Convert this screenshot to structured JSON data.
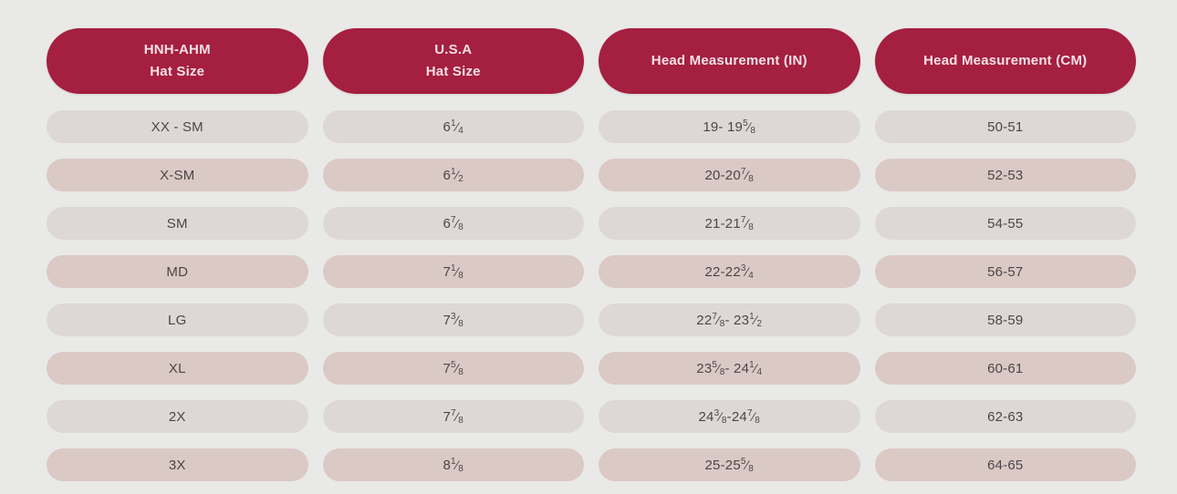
{
  "page": {
    "background": "#e9e9e8"
  },
  "colors": {
    "header_bg": "#a51f40",
    "header_text": "#f4e1e5",
    "row_odd_bg": "#ded7d7",
    "row_even_bg": "#dbc9c6",
    "row_text": "#4b4648"
  },
  "chart_data": {
    "type": "table",
    "columns": [
      {
        "label_line1": "HNH-AHM",
        "label_line2": "Hat Size"
      },
      {
        "label_line1": "U.S.A",
        "label_line2": "Hat Size"
      },
      {
        "label_line1": "Head Measurement (IN)",
        "label_line2": ""
      },
      {
        "label_line1": "Head Measurement (CM)",
        "label_line2": ""
      }
    ],
    "rows": [
      [
        "XX - SM",
        "6{1/4}",
        "19- 19{5/8}",
        "50-51"
      ],
      [
        "X-SM",
        "6 {1/2}",
        "20-20{7/8}",
        "52-53"
      ],
      [
        "SM",
        "6 {7/8}",
        "21-21{7/8}",
        "54-55"
      ],
      [
        "MD",
        "7 {1/8}",
        "22-22 {3/4}",
        "56-57"
      ],
      [
        "LG",
        "7 {3/8}",
        "22 {7/8} - 23 {1/2}",
        "58-59"
      ],
      [
        "XL",
        "7 {5/8}",
        "23 {5/8} - 24 {1/4}",
        "60-61"
      ],
      [
        "2X",
        "7 {7/8}",
        "24 {3/8}-24 {7/8}",
        "62-63"
      ],
      [
        "3X",
        "8 {1/8}",
        "25-25 {5/8}",
        "64-65"
      ]
    ]
  }
}
